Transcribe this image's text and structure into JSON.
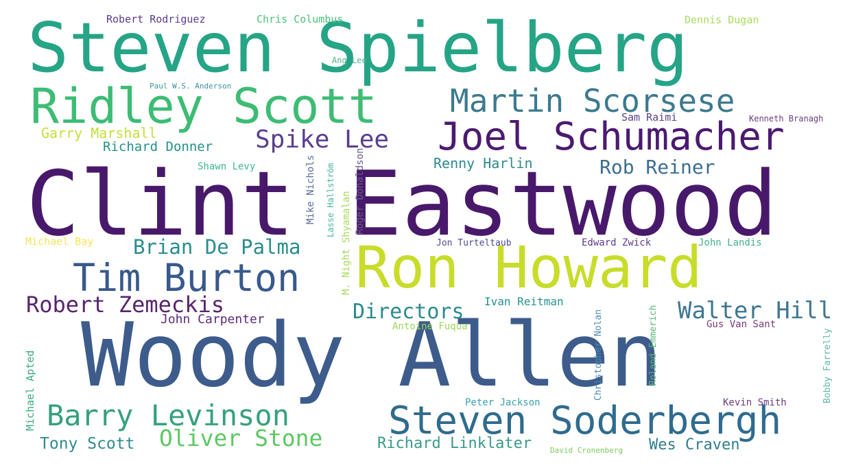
{
  "words": [
    {
      "text": "Steven Spielberg",
      "color": "#25a486"
    },
    {
      "text": "Clint Eastwood",
      "color": "#48196b"
    },
    {
      "text": "Woody Allen",
      "color": "#3d5c8c"
    },
    {
      "text": "Ron Howard",
      "color": "#c8dc2a"
    },
    {
      "text": "Ridley Scott",
      "color": "#3dbc74"
    },
    {
      "text": "Martin Scorsese",
      "color": "#3b7a8e"
    },
    {
      "text": "Joel Schumacher",
      "color": "#4b1a70"
    },
    {
      "text": "Steven Soderbergh",
      "color": "#2f6b8e"
    },
    {
      "text": "Tim Burton",
      "color": "#38598c"
    },
    {
      "text": "Barry Levinson",
      "color": "#35a07e"
    },
    {
      "text": "Spike Lee",
      "color": "#5a3e8f"
    },
    {
      "text": "Robert Zemeckis",
      "color": "#58246e"
    },
    {
      "text": "Oliver Stone",
      "color": "#5cc863"
    },
    {
      "text": "Walter Hill",
      "color": "#3e7691"
    },
    {
      "text": "Brian De Palma",
      "color": "#2a8d8c"
    },
    {
      "text": "Rob Reiner",
      "color": "#3b6d8e"
    },
    {
      "text": "Directors",
      "color": "#2a8a8c"
    },
    {
      "text": "Tony Scott",
      "color": "#2f8a90"
    },
    {
      "text": "Richard Linklater",
      "color": "#3a9a88"
    },
    {
      "text": "Wes Craven",
      "color": "#2f7d8e"
    },
    {
      "text": "Garry Marshall",
      "color": "#c3df3a"
    },
    {
      "text": "Richard Donner",
      "color": "#23908a"
    },
    {
      "text": "Renny Harlin",
      "color": "#2d8a8c"
    },
    {
      "text": "John Carpenter",
      "color": "#5c2a7a"
    },
    {
      "text": "Ivan Reitman",
      "color": "#24928c"
    },
    {
      "text": "Robert Rodriguez",
      "color": "#5a3a8a"
    },
    {
      "text": "Chris Columbus",
      "color": "#4cc07a"
    },
    {
      "text": "Dennis Dugan",
      "color": "#a7dc5c"
    },
    {
      "text": "Ang Lee",
      "color": "#4fb68a"
    },
    {
      "text": "Paul W.S. Anderson",
      "color": "#3e90a0"
    },
    {
      "text": "Sam Raimi",
      "color": "#5b3d86"
    },
    {
      "text": "Kenneth Branagh",
      "color": "#6a3a7e"
    },
    {
      "text": "Shawn Levy",
      "color": "#3cb88c"
    },
    {
      "text": "Michael Bay",
      "color": "#f3e55b"
    },
    {
      "text": "Jon Turteltaub",
      "color": "#4a4a8e"
    },
    {
      "text": "Edward Zwick",
      "color": "#5a3a8a"
    },
    {
      "text": "John Landis",
      "color": "#45b08a"
    },
    {
      "text": "Antoine Fuqua",
      "color": "#9cd85a"
    },
    {
      "text": "Gus Van Sant",
      "color": "#7a3a7a"
    },
    {
      "text": "Peter Jackson",
      "color": "#3a9fb0"
    },
    {
      "text": "Kevin Smith",
      "color": "#6a3a80"
    },
    {
      "text": "David Cronenberg",
      "color": "#7acb5a"
    },
    {
      "text": "Mike Nichols",
      "color": "#5a6a9a"
    },
    {
      "text": "Lasse Hallström",
      "color": "#42b6a2"
    },
    {
      "text": "M. Night Shyamalan",
      "color": "#a9d85a"
    },
    {
      "text": "Roger Donaldson",
      "color": "#6a5a8a"
    },
    {
      "text": "Michael Apted",
      "color": "#3aaa7c"
    },
    {
      "text": "Christopher Nolan",
      "color": "#4a8ab0"
    },
    {
      "text": "Roland Emmerich",
      "color": "#5ab57a"
    },
    {
      "text": "Bobby Farrelly",
      "color": "#5fb8a8"
    }
  ]
}
